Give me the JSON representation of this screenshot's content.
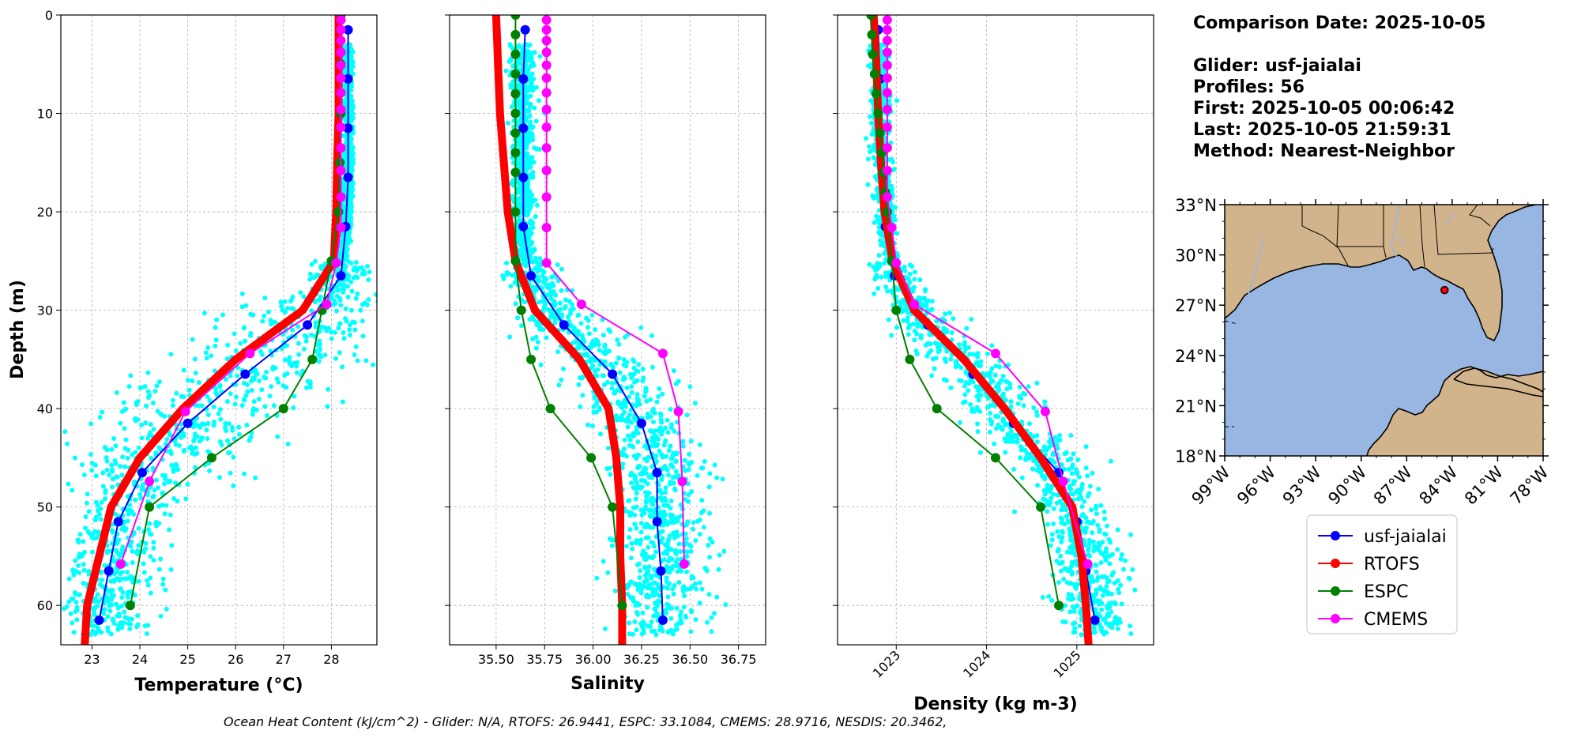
{
  "info": {
    "comparison_date": "Comparison Date: 2025-10-05",
    "glider": "Glider: usf-jaialai",
    "profiles": "Profiles: 56",
    "first": "First: 2025-10-05 00:06:42",
    "last": "Last: 2025-10-05 21:59:31",
    "method": "Method: Nearest-Neighbor"
  },
  "footer": "Ocean Heat Content (kJ/cm^2) - Glider: N/A,  RTOFS: 26.9441,  ESPC: 33.1084,  CMEMS: 28.9716,  NESDIS: 20.3462,",
  "colors": {
    "glider_scatter": "#00ffff",
    "usf-jaialai": "#0000ff",
    "RTOFS": "#ff0000",
    "ESPC": "#008000",
    "CMEMS": "#ff00ff",
    "land": "#d2b48c",
    "ocean": "#98b6e2"
  },
  "chart_data": [
    {
      "type": "line",
      "xlabel": "Temperature (°C)",
      "ylabel": "Depth (m)",
      "xlim": [
        22.35,
        28.95
      ],
      "ylim": [
        64,
        0
      ],
      "y_inverted": true,
      "grid": true,
      "xticks": [
        23,
        24,
        25,
        26,
        27,
        28
      ],
      "yticks": [
        0,
        10,
        20,
        30,
        40,
        50,
        60
      ],
      "series": [
        {
          "name": "usf-jaialai",
          "depth": [
            1.5,
            6.5,
            11.5,
            16.5,
            21.5,
            26.5,
            31.5,
            36.5,
            41.5,
            46.5,
            51.5,
            56.5,
            61.5
          ],
          "values": [
            28.35,
            28.35,
            28.35,
            28.35,
            28.3,
            28.2,
            27.5,
            26.2,
            25.0,
            24.05,
            23.55,
            23.35,
            23.15
          ]
        },
        {
          "name": "RTOFS",
          "depth": [
            0,
            5,
            10,
            15,
            20,
            25,
            30,
            35,
            40,
            45,
            50,
            55,
            60,
            64
          ],
          "values": [
            28.15,
            28.15,
            28.15,
            28.12,
            28.1,
            28.05,
            27.4,
            26.0,
            24.9,
            24.0,
            23.4,
            23.15,
            22.9,
            22.85
          ]
        },
        {
          "name": "ESPC",
          "depth": [
            0,
            5,
            10,
            15,
            20,
            25,
            30,
            35,
            40,
            45,
            50,
            60
          ],
          "values": [
            28.2,
            28.2,
            28.2,
            28.18,
            28.15,
            28.0,
            27.8,
            27.6,
            27.0,
            25.5,
            24.2,
            23.8
          ]
        },
        {
          "name": "CMEMS",
          "depth": [
            0.5,
            1.5,
            2.6,
            3.8,
            5.1,
            6.4,
            7.9,
            9.6,
            11.4,
            13.5,
            15.8,
            18.5,
            21.6,
            25.2,
            29.4,
            34.4,
            40.3,
            47.4,
            55.8
          ],
          "values": [
            28.2,
            28.2,
            28.2,
            28.2,
            28.2,
            28.2,
            28.2,
            28.2,
            28.2,
            28.2,
            28.2,
            28.2,
            28.2,
            28.1,
            27.9,
            26.3,
            24.95,
            24.2,
            23.6
          ]
        }
      ]
    },
    {
      "type": "line",
      "xlabel": "Salinity",
      "ylabel": "",
      "xlim": [
        35.26,
        36.89
      ],
      "ylim": [
        64,
        0
      ],
      "y_inverted": true,
      "grid": true,
      "xticks": [
        35.5,
        35.75,
        36.0,
        36.25,
        36.5,
        36.75
      ],
      "yticks": [
        0,
        10,
        20,
        30,
        40,
        50,
        60
      ],
      "series": [
        {
          "name": "usf-jaialai",
          "depth": [
            1.5,
            6.5,
            11.5,
            16.5,
            21.5,
            26.5,
            31.5,
            36.5,
            41.5,
            46.5,
            51.5,
            56.5,
            61.5
          ],
          "values": [
            35.65,
            35.64,
            35.64,
            35.64,
            35.64,
            35.68,
            35.85,
            36.1,
            36.25,
            36.33,
            36.33,
            36.35,
            36.36
          ]
        },
        {
          "name": "RTOFS",
          "depth": [
            0,
            5,
            10,
            15,
            20,
            25,
            30,
            35,
            40,
            45,
            50,
            55,
            60,
            64
          ],
          "values": [
            35.5,
            35.51,
            35.52,
            35.54,
            35.56,
            35.6,
            35.7,
            35.93,
            36.08,
            36.12,
            36.14,
            36.14,
            36.15,
            36.15
          ]
        },
        {
          "name": "ESPC",
          "depth": [
            0,
            2,
            4,
            6,
            8,
            10,
            12,
            14,
            16,
            20,
            25,
            30,
            35,
            40,
            45,
            50,
            60
          ],
          "values": [
            35.6,
            35.6,
            35.6,
            35.6,
            35.6,
            35.6,
            35.6,
            35.6,
            35.6,
            35.6,
            35.6,
            35.63,
            35.68,
            35.78,
            35.99,
            36.1,
            36.15
          ]
        },
        {
          "name": "CMEMS",
          "depth": [
            0.5,
            1.5,
            2.6,
            3.8,
            5.1,
            6.4,
            7.9,
            9.6,
            11.4,
            13.5,
            15.8,
            18.5,
            21.6,
            25.2,
            29.4,
            34.4,
            40.3,
            47.4,
            55.8
          ],
          "values": [
            35.76,
            35.76,
            35.76,
            35.76,
            35.76,
            35.76,
            35.76,
            35.76,
            35.76,
            35.76,
            35.76,
            35.76,
            35.76,
            35.76,
            35.94,
            36.36,
            36.44,
            36.46,
            36.47
          ]
        }
      ]
    },
    {
      "type": "line",
      "xlabel": "Density (kg m-3)",
      "ylabel": "",
      "xlim": [
        1022.35,
        1025.85
      ],
      "ylim": [
        64,
        0
      ],
      "y_inverted": true,
      "grid": true,
      "xticks": [
        1023,
        1024,
        1025
      ],
      "xtick_rotation": 45,
      "yticks": [
        0,
        10,
        20,
        30,
        40,
        50,
        60
      ],
      "series": [
        {
          "name": "usf-jaialai",
          "depth": [
            1.5,
            6.5,
            11.5,
            16.5,
            21.5,
            26.5,
            31.5,
            36.5,
            41.5,
            46.5,
            51.5,
            56.5,
            61.5
          ],
          "values": [
            1022.8,
            1022.82,
            1022.82,
            1022.85,
            1022.88,
            1022.98,
            1023.35,
            1023.85,
            1024.3,
            1024.8,
            1025.0,
            1025.1,
            1025.2
          ]
        },
        {
          "name": "RTOFS",
          "depth": [
            0,
            5,
            10,
            15,
            20,
            25,
            30,
            35,
            40,
            45,
            50,
            55,
            60,
            64
          ],
          "values": [
            1022.75,
            1022.78,
            1022.8,
            1022.83,
            1022.87,
            1022.96,
            1023.2,
            1023.75,
            1024.2,
            1024.6,
            1024.95,
            1025.05,
            1025.1,
            1025.13
          ]
        },
        {
          "name": "ESPC",
          "depth": [
            0,
            2,
            4,
            6,
            8,
            10,
            12,
            14,
            16,
            18,
            20,
            25,
            30,
            35,
            40,
            45,
            50,
            60
          ],
          "values": [
            1022.72,
            1022.73,
            1022.74,
            1022.76,
            1022.78,
            1022.8,
            1022.82,
            1022.84,
            1022.86,
            1022.88,
            1022.9,
            1022.95,
            1023.0,
            1023.15,
            1023.45,
            1024.1,
            1024.6,
            1024.8
          ]
        },
        {
          "name": "CMEMS",
          "depth": [
            0.5,
            1.5,
            2.6,
            3.8,
            5.1,
            6.4,
            7.9,
            9.6,
            11.4,
            13.5,
            15.8,
            18.5,
            21.6,
            25.2,
            29.4,
            34.4,
            40.3,
            47.4,
            55.8
          ],
          "values": [
            1022.9,
            1022.9,
            1022.9,
            1022.9,
            1022.9,
            1022.9,
            1022.9,
            1022.9,
            1022.9,
            1022.9,
            1022.9,
            1022.9,
            1022.95,
            1023.0,
            1023.2,
            1024.1,
            1024.65,
            1024.85,
            1025.12
          ]
        }
      ]
    }
  ],
  "map": {
    "lat_ticks": [
      "18°N",
      "21°N",
      "24°N",
      "27°N",
      "30°N",
      "33°N"
    ],
    "lon_ticks": [
      "99°W",
      "96°W",
      "93°W",
      "90°W",
      "87°W",
      "84°W",
      "81°W",
      "78°W"
    ],
    "lon_range": [
      -99,
      -78
    ],
    "lat_range": [
      18,
      33
    ],
    "glider_location": {
      "lon": -84.5,
      "lat": 27.9
    }
  },
  "legend": {
    "entries": [
      "usf-jaialai",
      "RTOFS",
      "ESPC",
      "CMEMS"
    ]
  }
}
